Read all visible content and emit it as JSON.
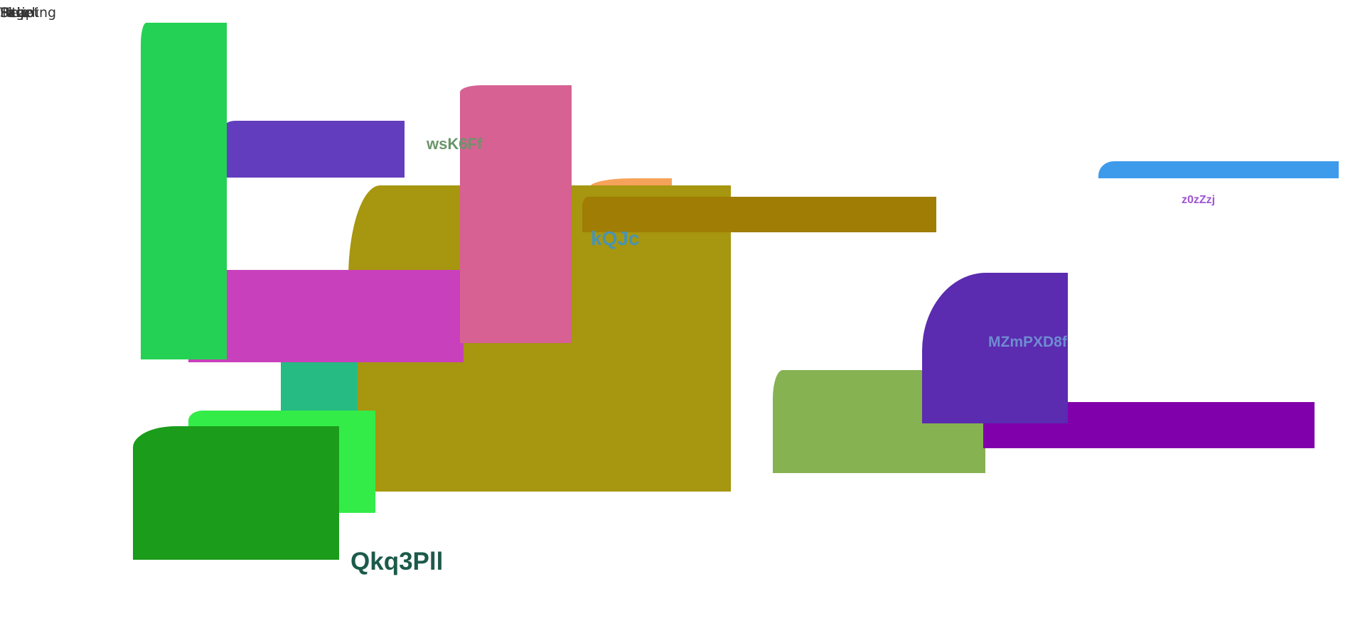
{
  "corner_overlapping_words": [
    "Skip",
    "Page",
    "Title",
    "Heading",
    "Script"
  ],
  "labels": {
    "l1": "wsK6Ff",
    "l2": "kQJc",
    "l3": "z0zZzj",
    "l4": "MZmPXD8f",
    "l5": "Qkq3Pll"
  },
  "colors": {
    "green_tall": "#25d155",
    "purple_bar": "#623ebe",
    "pink_col": "#d66192",
    "olive_big": "#a7960f",
    "brown_bar": "#a07d05",
    "magenta_bar": "#c940bc",
    "teal_block": "#25bb82",
    "lime_block": "#33ec48",
    "darkgreen_block": "#1b9c1b",
    "orange_sliver": "#f5a35a",
    "blue_bar": "#3e9bec",
    "purple_block": "#5b2bb0",
    "violet_bar": "#8000ab",
    "olive_green": "#86b252",
    "label_l1": "#6a956a",
    "label_l2": "#4a93b0",
    "label_l3": "#9e55d2",
    "label_l4": "#6f8cd1",
    "label_l5": "#1c5a4b"
  }
}
